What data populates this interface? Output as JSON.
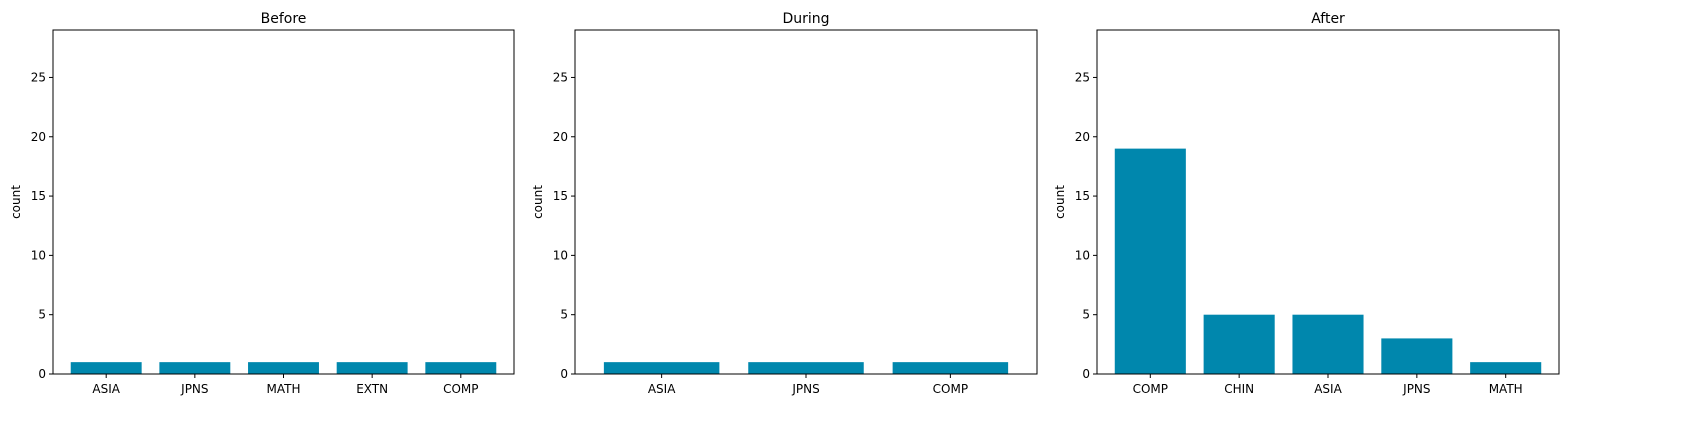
{
  "chart_data": [
    {
      "type": "bar",
      "title": "Before",
      "ylabel": "count",
      "categories": [
        "ASIA",
        "JPNS",
        "MATH",
        "EXTN",
        "COMP"
      ],
      "values": [
        1,
        1,
        1,
        1,
        1
      ],
      "ylim": [
        0,
        29
      ],
      "yticks": [
        0,
        5,
        10,
        15,
        20,
        25
      ],
      "color": "#0087ad",
      "grid": false
    },
    {
      "type": "bar",
      "title": "During",
      "ylabel": "count",
      "categories": [
        "ASIA",
        "JPNS",
        "COMP"
      ],
      "values": [
        1,
        1,
        1
      ],
      "ylim": [
        0,
        29
      ],
      "yticks": [
        0,
        5,
        10,
        15,
        20,
        25
      ],
      "color": "#0087ad",
      "grid": false
    },
    {
      "type": "bar",
      "title": "After",
      "ylabel": "count",
      "categories": [
        "COMP",
        "CHIN",
        "ASIA",
        "JPNS",
        "MATH"
      ],
      "values": [
        19,
        5,
        5,
        3,
        1
      ],
      "ylim": [
        0,
        29
      ],
      "yticks": [
        0,
        5,
        10,
        15,
        20,
        25
      ],
      "color": "#0087ad",
      "grid": false
    }
  ]
}
